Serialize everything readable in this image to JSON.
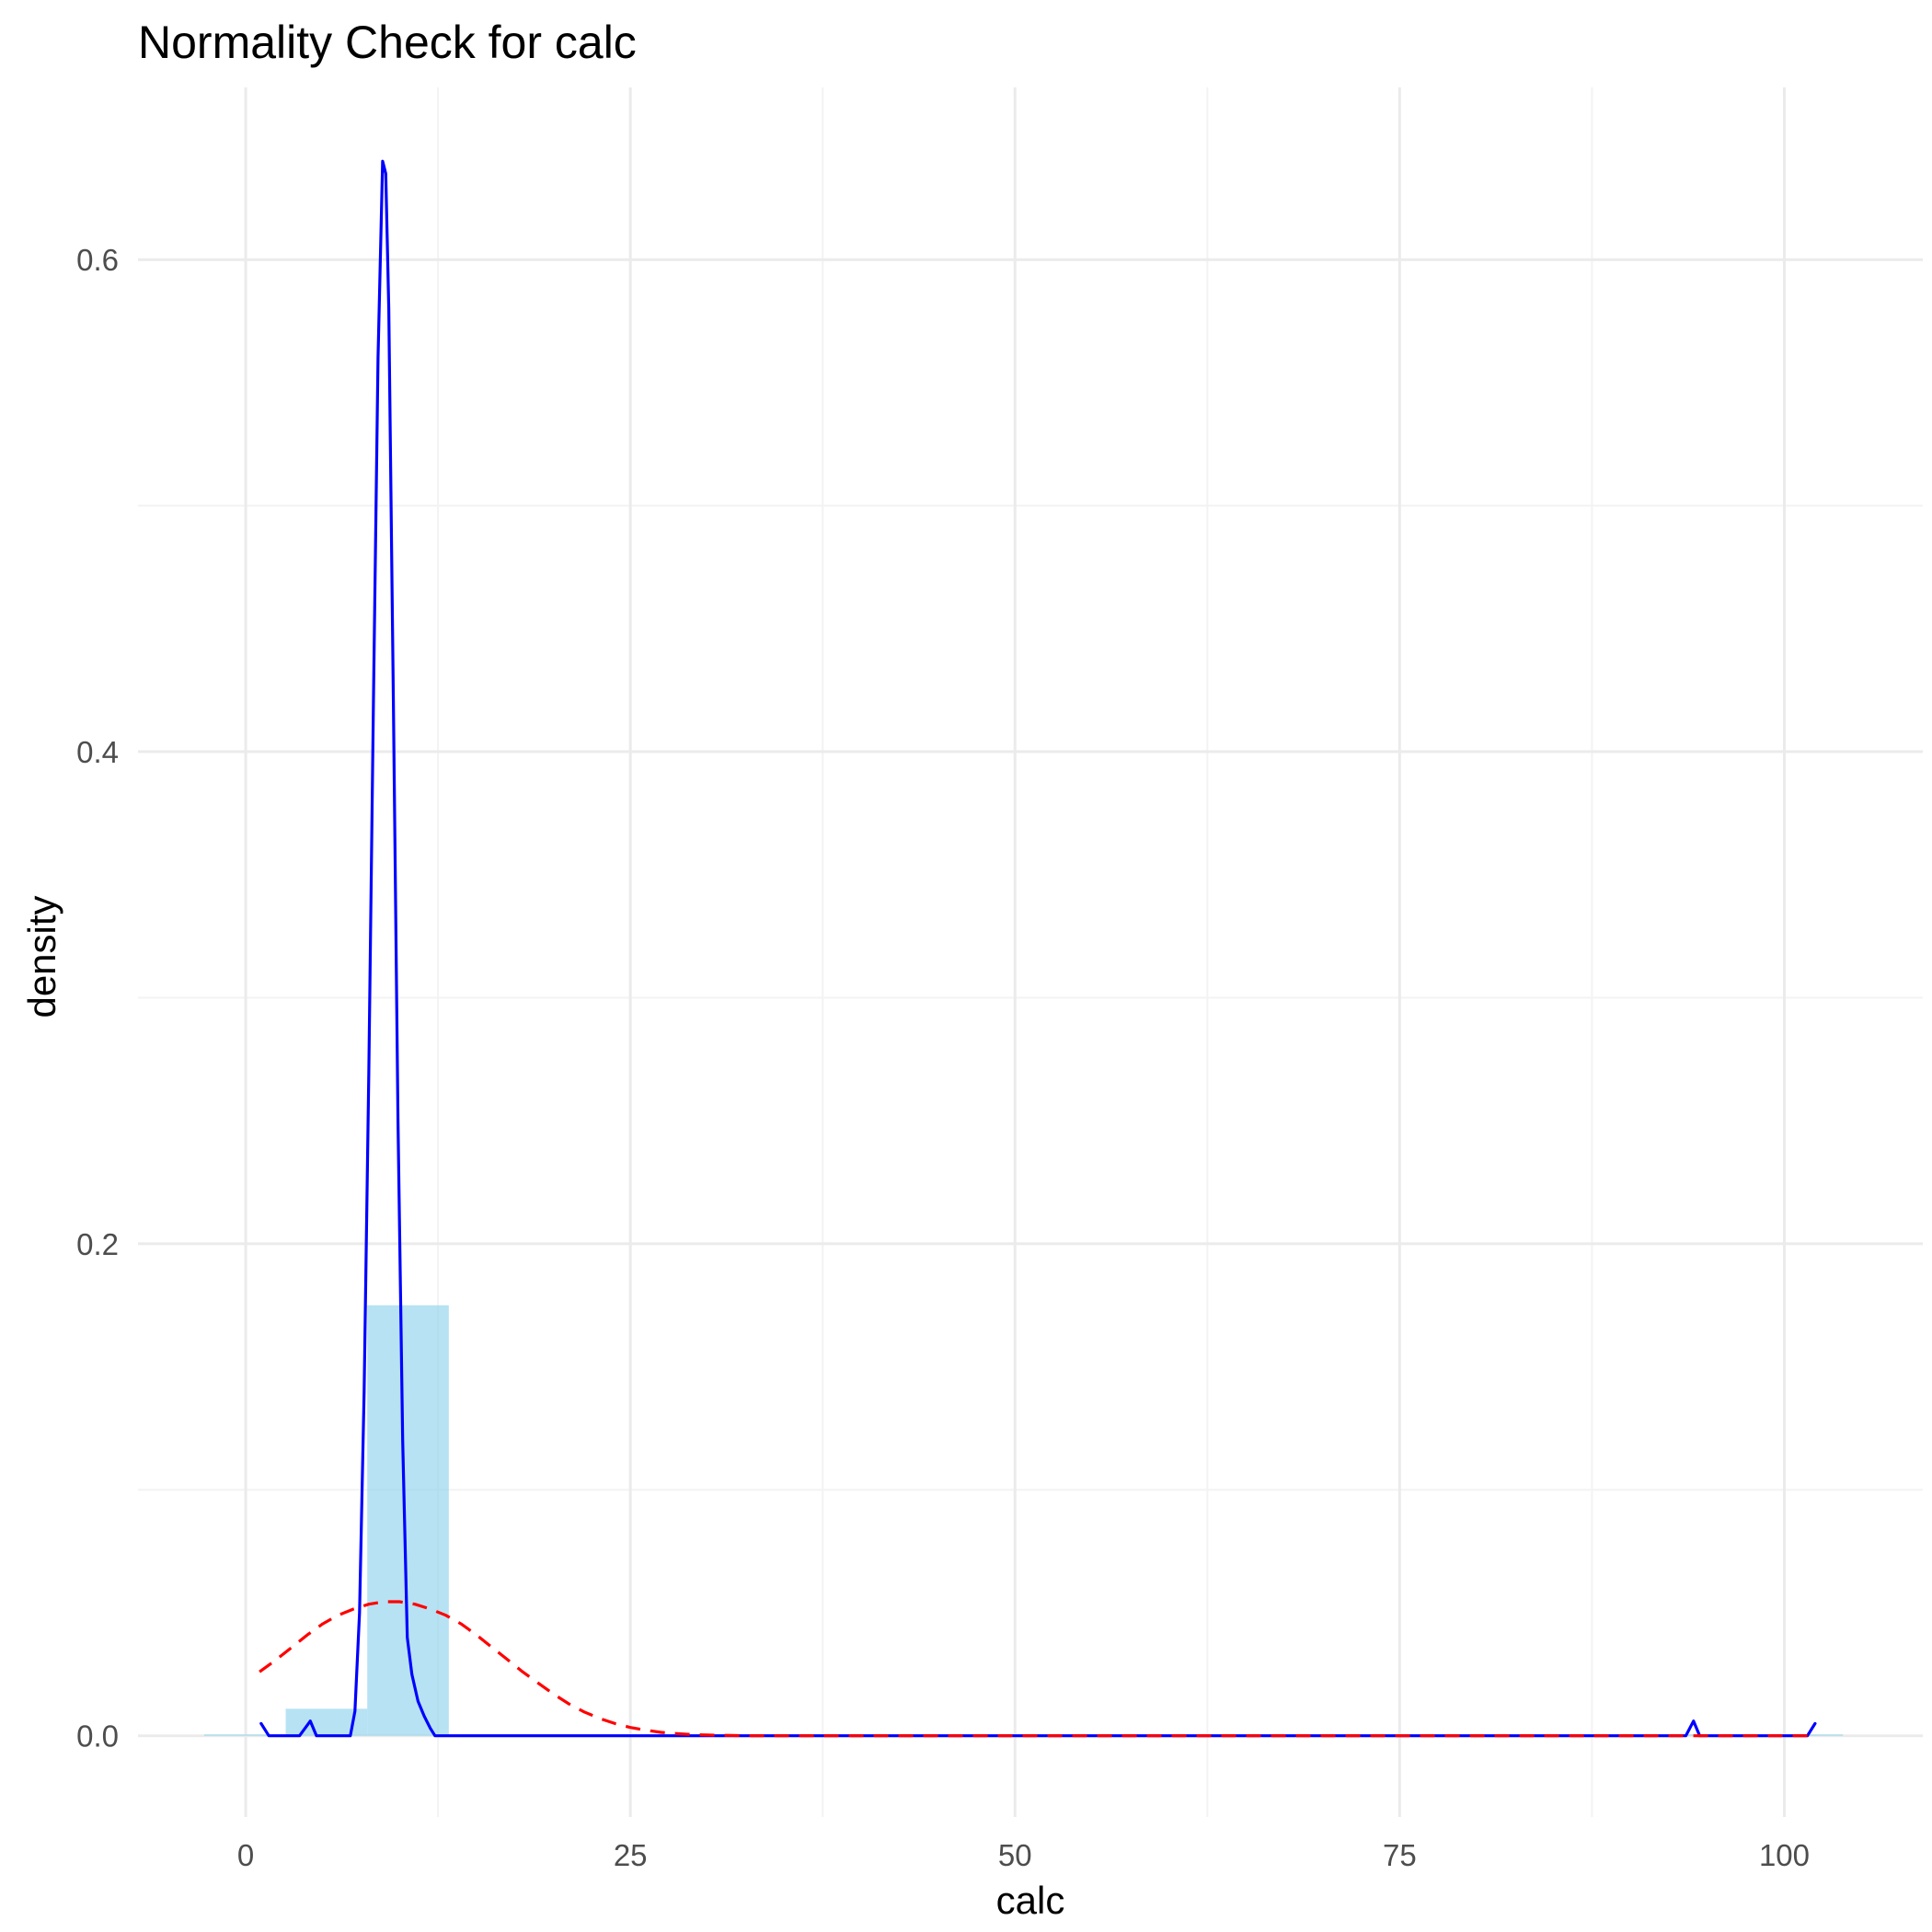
{
  "chart_data": {
    "type": "bar",
    "title": "Normality Check for calc",
    "xlabel": "calc",
    "ylabel": "density",
    "xlim": [
      -7.0,
      109.0
    ],
    "ylim": [
      -0.033,
      0.67
    ],
    "x_ticks": [
      0,
      25,
      50,
      75,
      100
    ],
    "x_tick_labels": [
      "0",
      "25",
      "50",
      "75",
      "100"
    ],
    "y_ticks": [
      0.0,
      0.2,
      0.4,
      0.6
    ],
    "y_tick_labels": [
      "0.0",
      "0.2",
      "0.4",
      "0.6"
    ],
    "grid": true,
    "legend": "none",
    "histogram": {
      "fill": "#87ceeb",
      "bins": [
        {
          "x0": -2.7,
          "x1": 2.6,
          "density": 0.0
        },
        {
          "x0": 2.6,
          "x1": 7.9,
          "density": 0.011
        },
        {
          "x0": 7.9,
          "x1": 13.2,
          "density": 0.175
        },
        {
          "x0": 13.2,
          "x1": 18.5,
          "density": 0.0
        },
        {
          "x0": 18.5,
          "x1": 23.8,
          "density": 0.0
        },
        {
          "x0": 23.8,
          "x1": 29.1,
          "density": 0.0
        },
        {
          "x0": 29.1,
          "x1": 34.4,
          "density": 0.0
        },
        {
          "x0": 34.4,
          "x1": 39.7,
          "density": 0.0
        },
        {
          "x0": 39.7,
          "x1": 45.0,
          "density": 0.0
        },
        {
          "x0": 45.0,
          "x1": 50.3,
          "density": 0.0
        },
        {
          "x0": 50.3,
          "x1": 55.6,
          "density": 0.0
        },
        {
          "x0": 55.6,
          "x1": 60.9,
          "density": 0.0
        },
        {
          "x0": 60.9,
          "x1": 66.2,
          "density": 0.0
        },
        {
          "x0": 66.2,
          "x1": 71.5,
          "density": 0.0
        },
        {
          "x0": 71.5,
          "x1": 76.8,
          "density": 0.0
        },
        {
          "x0": 76.8,
          "x1": 82.1,
          "density": 0.0
        },
        {
          "x0": 82.1,
          "x1": 87.4,
          "density": 0.0
        },
        {
          "x0": 87.4,
          "x1": 92.7,
          "density": 0.0
        },
        {
          "x0": 92.7,
          "x1": 98.0,
          "density": 0.0005
        },
        {
          "x0": 98.0,
          "x1": 103.8,
          "density": 0.0005
        }
      ]
    },
    "series": [
      {
        "kind": "kernel-density",
        "color": "#0000ff",
        "style": "solid",
        "points": [
          [
            1.0,
            0.005
          ],
          [
            1.5,
            0.0
          ],
          [
            3.5,
            0.0
          ],
          [
            4.2,
            0.006
          ],
          [
            4.6,
            0.0
          ],
          [
            6.8,
            0.0
          ],
          [
            7.1,
            0.01
          ],
          [
            7.4,
            0.05
          ],
          [
            7.7,
            0.14
          ],
          [
            8.0,
            0.27
          ],
          [
            8.3,
            0.42
          ],
          [
            8.6,
            0.56
          ],
          [
            8.9,
            0.64
          ],
          [
            9.1,
            0.635
          ],
          [
            9.3,
            0.58
          ],
          [
            9.6,
            0.42
          ],
          [
            9.9,
            0.25
          ],
          [
            10.2,
            0.12
          ],
          [
            10.5,
            0.04
          ],
          [
            10.8,
            0.025
          ],
          [
            11.2,
            0.014
          ],
          [
            11.6,
            0.008
          ],
          [
            12.0,
            0.003
          ],
          [
            12.3,
            0.0
          ],
          [
            93.6,
            0.0
          ],
          [
            94.1,
            0.006
          ],
          [
            94.5,
            0.0
          ],
          [
            101.5,
            0.0
          ],
          [
            102.0,
            0.005
          ]
        ]
      },
      {
        "kind": "normal-fit",
        "color": "#ff0000",
        "style": "dashed",
        "points": [
          [
            0.9,
            0.026
          ],
          [
            2.0,
            0.031
          ],
          [
            3.0,
            0.036
          ],
          [
            4.0,
            0.041
          ],
          [
            5.0,
            0.0455
          ],
          [
            6.0,
            0.049
          ],
          [
            7.0,
            0.0515
          ],
          [
            8.0,
            0.0535
          ],
          [
            9.0,
            0.0545
          ],
          [
            10.0,
            0.0545
          ],
          [
            11.0,
            0.0535
          ],
          [
            12.0,
            0.0515
          ],
          [
            13.0,
            0.049
          ],
          [
            14.0,
            0.0455
          ],
          [
            15.0,
            0.041
          ],
          [
            16.0,
            0.036
          ],
          [
            17.0,
            0.031
          ],
          [
            18.0,
            0.026
          ],
          [
            19.0,
            0.0215
          ],
          [
            20.0,
            0.017
          ],
          [
            21.0,
            0.013
          ],
          [
            22.0,
            0.0097
          ],
          [
            23.0,
            0.0071
          ],
          [
            24.0,
            0.005
          ],
          [
            25.0,
            0.0034
          ],
          [
            26.0,
            0.0023
          ],
          [
            27.0,
            0.0014
          ],
          [
            28.0,
            0.0009
          ],
          [
            29.0,
            0.0005
          ],
          [
            30.0,
            0.0003
          ],
          [
            31.0,
            0.0002
          ],
          [
            32.0,
            0.0001
          ],
          [
            33.0,
            0.0
          ],
          [
            102.0,
            0.0
          ]
        ]
      }
    ]
  }
}
